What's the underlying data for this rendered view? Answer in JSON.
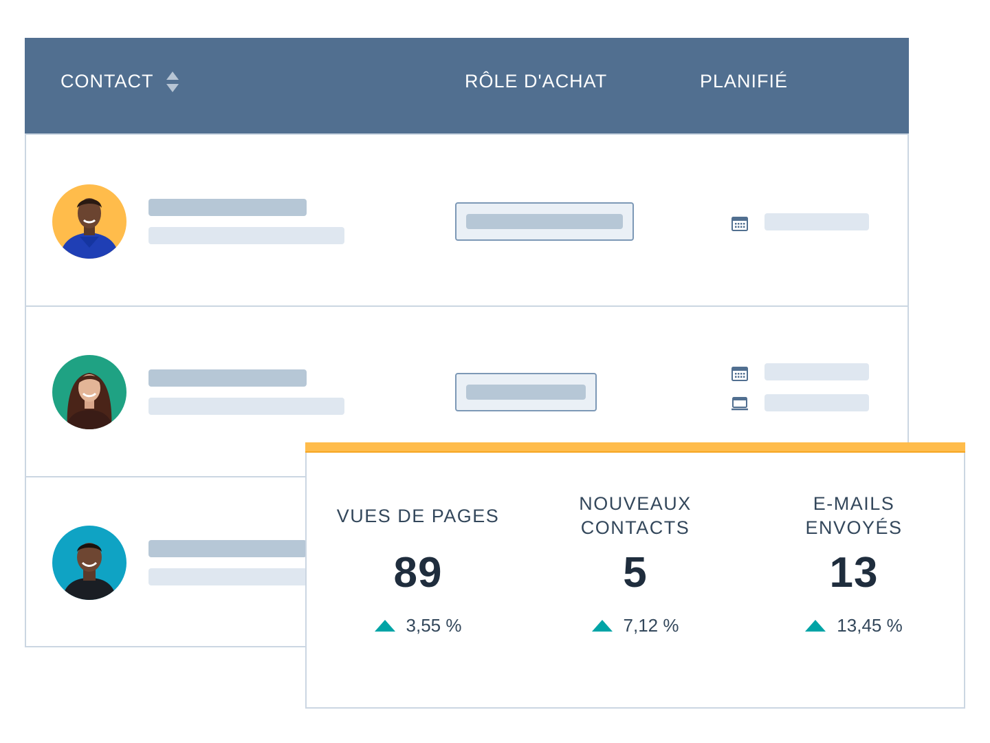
{
  "table": {
    "columns": {
      "contact": "CONTACT",
      "role": "RÔLE D'ACHAT",
      "planned": "PLANIFIÉ"
    }
  },
  "stats": [
    {
      "label_line1": "VUES DE PAGES",
      "label_line2": "",
      "value": "89",
      "change": "3,55 %"
    },
    {
      "label_line1": "NOUVEAUX",
      "label_line2": "CONTACTS",
      "value": "5",
      "change": "7,12 %"
    },
    {
      "label_line1": "E-MAILS",
      "label_line2": "ENVOYÉS",
      "value": "13",
      "change": "13,45 %"
    }
  ],
  "colors": {
    "header": "#516f90",
    "accent": "#ffbc4b",
    "positive": "#00a4a6"
  },
  "icons": {
    "sort": "sort-icon",
    "calendar": "calendar-icon",
    "laptop": "laptop-icon",
    "trend_up": "triangle-up-icon"
  }
}
